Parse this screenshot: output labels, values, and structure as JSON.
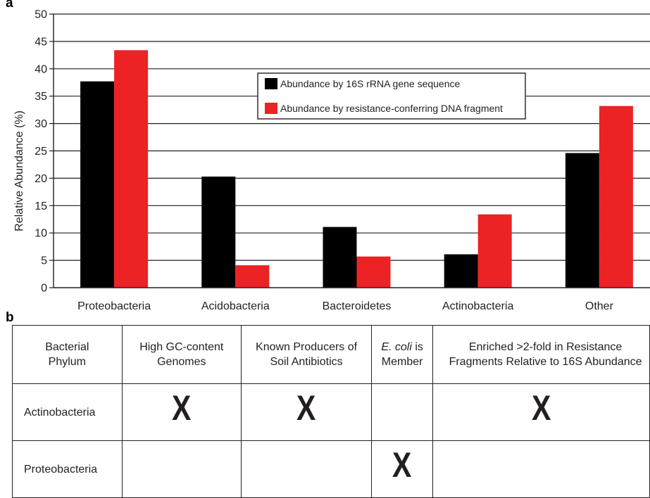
{
  "panel_a_label": "a",
  "panel_b_label": "b",
  "chart_data": {
    "type": "bar",
    "categories": [
      "Proteobacteria",
      "Acidobacteria",
      "Bacteroidetes",
      "Actinobacteria",
      "Other"
    ],
    "series": [
      {
        "name": "Abundance by 16S rRNA gene sequence",
        "color": "#000000",
        "values": [
          37.7,
          20.3,
          11.1,
          6.1,
          24.6
        ]
      },
      {
        "name": "Abundance by resistance-conferring DNA fragment",
        "color": "#ed2224",
        "values": [
          43.4,
          4.1,
          5.7,
          13.4,
          33.2
        ]
      }
    ],
    "title": "",
    "xlabel": "",
    "ylabel": "Relative Abundance (%)",
    "ylim": [
      0,
      50
    ],
    "yticks": [
      "0",
      "5",
      "10",
      "15",
      "20",
      "25",
      "30",
      "35",
      "40",
      "45",
      "50"
    ],
    "grid": true,
    "legend_position": "upper-center"
  },
  "table": {
    "headers": {
      "phylum": "Bacterial Phylum",
      "gc": "High GC-content Genomes",
      "producers": "Known Producers of Soil Antibiotics",
      "ecoli_italic": "E. coli",
      "ecoli_rest": " is Member",
      "enriched": "Enriched >2-fold in Resistance Fragments Relative to 16S Abundance"
    },
    "rows": [
      {
        "phylum": "Actinobacteria",
        "gc": "X",
        "producers": "X",
        "ecoli": "",
        "enriched": "X"
      },
      {
        "phylum": "Proteobacteria",
        "gc": "",
        "producers": "",
        "ecoli": "X",
        "enriched": ""
      }
    ]
  }
}
